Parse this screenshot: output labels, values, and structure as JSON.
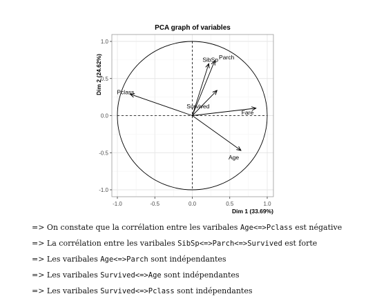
{
  "chart_data": {
    "type": "scatter",
    "subtype": "pca-correlation-circle",
    "title": "PCA graph of variables",
    "xlabel": "Dim 1 (33.69%)",
    "ylabel": "Dim 2 (24.62%)",
    "xlim": [
      -1.0,
      1.0
    ],
    "ylim": [
      -1.0,
      1.0
    ],
    "xticks": [
      "-1.0",
      "-0.5",
      "0.0",
      "0.5",
      "1.0"
    ],
    "yticks": [
      "-1.0",
      "-0.5",
      "0.0",
      "0.5",
      "1.0"
    ],
    "grid": true,
    "unit_circle": true,
    "variables": [
      {
        "label": "Parch",
        "x": 0.3,
        "y": 0.74
      },
      {
        "label": "SibSp",
        "x": 0.22,
        "y": 0.7
      },
      {
        "label": "Survived",
        "x": 0.33,
        "y": 0.34
      },
      {
        "label": "Pclass",
        "x": -0.83,
        "y": 0.29
      },
      {
        "label": "Fare",
        "x": 0.85,
        "y": 0.1
      },
      {
        "label": "Age",
        "x": 0.65,
        "y": -0.47
      }
    ],
    "colors": {
      "arrow": "#000000",
      "grid": "#e6e6e6",
      "panel_border": "#999999"
    }
  },
  "notes": [
    [
      {
        "t": "=> On constate que la corrélation entre les varibales "
      },
      {
        "t": "Age<=>Pclass",
        "mono": true
      },
      {
        "t": " est négative"
      }
    ],
    [
      {
        "t": "=> La corrélation entre les varibales "
      },
      {
        "t": "SibSp<=>Parch<=>Survived",
        "mono": true
      },
      {
        "t": " est forte"
      }
    ],
    [
      {
        "t": "=> Les varibales "
      },
      {
        "t": "Age<=>Parch",
        "mono": true
      },
      {
        "t": " sont indépendantes"
      }
    ],
    [
      {
        "t": "=> Les varibales "
      },
      {
        "t": "Survived<=>Age",
        "mono": true
      },
      {
        "t": " sont indépendantes"
      }
    ],
    [
      {
        "t": "=> Les varibales "
      },
      {
        "t": "Survived<=>Pclass",
        "mono": true
      },
      {
        "t": " sont indépendantes"
      }
    ]
  ]
}
